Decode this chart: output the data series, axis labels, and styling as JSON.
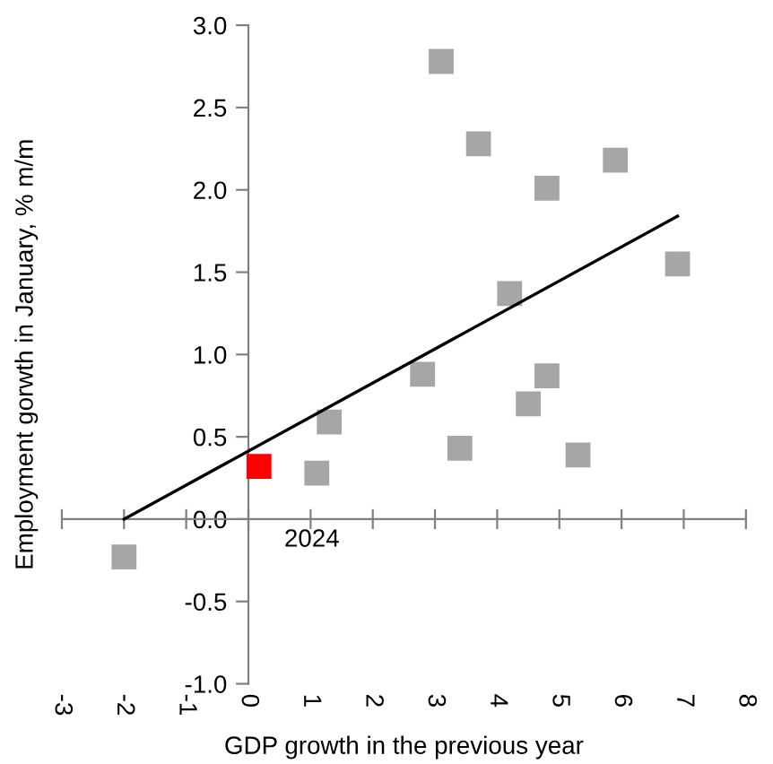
{
  "chart_data": {
    "type": "scatter",
    "xlabel": "GDP growth in the previous year",
    "ylabel": "Employment gorwth in January, % m/m",
    "marker": "square",
    "series": [
      {
        "color": "#a6a6a6",
        "x": [
          -2.0,
          1.1,
          1.3,
          2.8,
          3.1,
          3.4,
          3.7,
          4.2,
          4.5,
          4.8,
          4.8,
          5.3,
          5.9,
          6.9
        ],
        "values": [
          -0.23,
          0.28,
          0.59,
          0.88,
          2.78,
          0.43,
          2.28,
          1.37,
          0.7,
          2.01,
          0.87,
          0.39,
          2.18,
          1.55
        ]
      },
      {
        "color": "#ff0000",
        "x": [
          0.17
        ],
        "values": [
          0.32
        ]
      },
      {
        "type": "line",
        "color": "#000000",
        "marker": "none",
        "x": [
          -2.0,
          6.9
        ],
        "values": [
          0.0,
          1.84
        ]
      }
    ],
    "annotations": [
      "2024"
    ],
    "xlim": [
      -3,
      8
    ],
    "xticks": [
      -3,
      -2,
      -1,
      0,
      1,
      2,
      3,
      4,
      5,
      6,
      7,
      8
    ],
    "ylim": [
      -1,
      3
    ],
    "yticks": [
      {
        "value": -1,
        "label": "-1.0"
      },
      {
        "value": -0.5,
        "label": "-0.5"
      },
      {
        "value": 0,
        "label": "0.0"
      },
      {
        "value": 0.5,
        "label": "0.5"
      },
      {
        "value": 1,
        "label": "1.0"
      },
      {
        "value": 1.5,
        "label": "1.5"
      },
      {
        "value": 2,
        "label": "2.0"
      },
      {
        "value": 2.5,
        "label": "2.5"
      },
      {
        "value": 3,
        "label": "3.0"
      }
    ]
  }
}
